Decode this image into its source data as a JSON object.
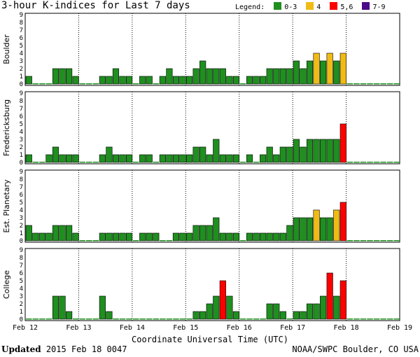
{
  "title": "3-hour K-indices for Last 7 days",
  "legend": {
    "label": "Legend:",
    "items": [
      {
        "label": "0-3",
        "color": "#1f8f1f"
      },
      {
        "label": "4",
        "color": "#f0bb14"
      },
      {
        "label": "5,6",
        "color": "#ff0000"
      },
      {
        "label": "7-9",
        "color": "#4b0a8a"
      }
    ]
  },
  "footer": {
    "updated_label": "Updated",
    "updated_value": "2015 Feb 18 0047",
    "credit": "NOAA/SWPC Boulder, CO USA"
  },
  "chart_data": {
    "type": "bar",
    "xlabel": "Coordinate Universal Time (UTC)",
    "x_ticks": [
      "Feb 12",
      "Feb 13",
      "Feb 14",
      "Feb 15",
      "Feb 16",
      "Feb 17",
      "Feb 18",
      "Feb 19"
    ],
    "ylim": [
      0,
      9
    ],
    "y_ticks": [
      "0",
      "1",
      "2",
      "3",
      "4",
      "5",
      "6",
      "7",
      "8",
      "9"
    ],
    "grid": "vertical dotted at day boundaries",
    "color_scale": {
      "0-3": "#1f8f1f",
      "4": "#f0bb14",
      "5-6": "#ff0000",
      "7-9": "#4b0a8a"
    },
    "panels": [
      {
        "name": "Boulder",
        "values": [
          1,
          0,
          0,
          0,
          2,
          2,
          2,
          1,
          0,
          0,
          0,
          1,
          1,
          2,
          1,
          1,
          0,
          1,
          1,
          0,
          1,
          2,
          1,
          1,
          1,
          2,
          3,
          2,
          2,
          2,
          1,
          1,
          0,
          1,
          1,
          1,
          2,
          2,
          2,
          2,
          3,
          2,
          3,
          4,
          3,
          4,
          3,
          4
        ]
      },
      {
        "name": "Fredericksburg",
        "values": [
          1,
          0,
          0,
          1,
          2,
          1,
          1,
          1,
          0,
          0,
          0,
          1,
          2,
          1,
          1,
          1,
          0,
          1,
          1,
          0,
          1,
          1,
          1,
          1,
          1,
          2,
          2,
          1,
          3,
          1,
          1,
          1,
          0,
          1,
          0,
          1,
          2,
          1,
          2,
          2,
          3,
          2,
          3,
          3,
          3,
          3,
          3,
          5
        ]
      },
      {
        "name": "Est. Planetary",
        "values": [
          2,
          1,
          1,
          1,
          2,
          2,
          2,
          1,
          0,
          0,
          0,
          1,
          1,
          1,
          1,
          1,
          0,
          1,
          1,
          1,
          0,
          0,
          1,
          1,
          1,
          2,
          2,
          2,
          3,
          1,
          1,
          1,
          0,
          1,
          1,
          1,
          1,
          1,
          1,
          2,
          3,
          3,
          3,
          4,
          3,
          3,
          4,
          5
        ]
      },
      {
        "name": "College",
        "values": [
          0,
          0,
          0,
          0,
          3,
          3,
          1,
          0,
          0,
          0,
          0,
          3,
          1,
          0,
          0,
          0,
          0,
          0,
          0,
          0,
          0,
          0,
          0,
          0,
          0,
          1,
          1,
          2,
          3,
          5,
          3,
          1,
          0,
          0,
          0,
          0,
          2,
          2,
          1,
          0,
          1,
          1,
          2,
          2,
          3,
          6,
          3,
          5
        ]
      }
    ],
    "trailing_values_note": ""
  }
}
